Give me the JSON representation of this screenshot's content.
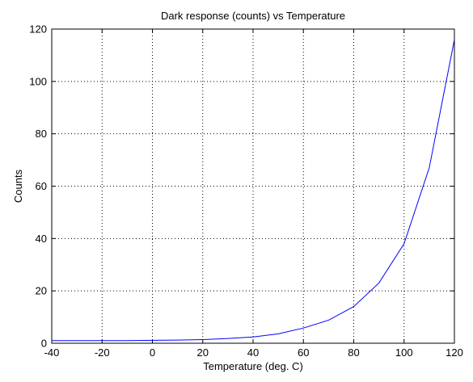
{
  "chart_data": {
    "type": "line",
    "title": "Dark response (counts) vs Temperature",
    "xlabel": "Temperature (deg. C)",
    "ylabel": "Counts",
    "xlim": [
      -40,
      120
    ],
    "ylim": [
      0,
      120
    ],
    "xticks": [
      -40,
      -20,
      0,
      20,
      40,
      60,
      80,
      100,
      120
    ],
    "yticks": [
      0,
      20,
      40,
      60,
      80,
      100,
      120
    ],
    "grid": true,
    "series": [
      {
        "color": "#0000ff",
        "x": [
          -40,
          -30,
          -20,
          -10,
          0,
          10,
          20,
          30,
          40,
          50,
          60,
          70,
          80,
          90,
          100,
          110,
          120
        ],
        "y": [
          1.0,
          1.0,
          1.0,
          1.0,
          1.1,
          1.2,
          1.4,
          1.8,
          2.4,
          3.6,
          5.8,
          8.8,
          14.0,
          23.0,
          38.0,
          67.0,
          116.0
        ]
      }
    ]
  }
}
